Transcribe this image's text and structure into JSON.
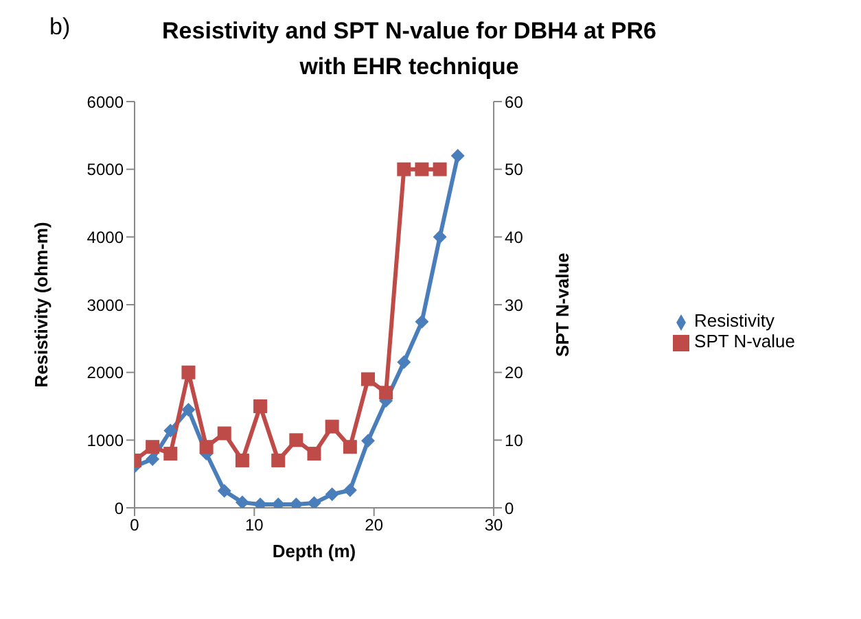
{
  "chart_data": {
    "type": "line",
    "title": "Resistivity and SPT N-value for DBH4 at PR6 with EHR technique",
    "annotations": [
      "b)"
    ],
    "xlabel": "Depth (m)",
    "ylabel": "Resistivity  (ohm-m)",
    "y2label": "SPT N-value",
    "xlim": [
      0,
      30
    ],
    "xticks": [
      0,
      10,
      20,
      30
    ],
    "ylim": [
      0,
      6000
    ],
    "yticks": [
      0,
      1000,
      2000,
      3000,
      4000,
      5000,
      6000
    ],
    "y2lim": [
      0,
      60
    ],
    "y2ticks": [
      0,
      10,
      20,
      30,
      40,
      50,
      60
    ],
    "legend": "right",
    "series": [
      {
        "name": "Resistivity",
        "color": "#4a7ebb",
        "marker": "diamond",
        "x": [
          0,
          1.5,
          3,
          4.5,
          6,
          7.5,
          9,
          10.5,
          12,
          13.5,
          15,
          16.5,
          18,
          19.5,
          21,
          22.5,
          24,
          25.5,
          27
        ],
        "values": [
          610,
          720,
          1140,
          1450,
          800,
          250,
          80,
          50,
          50,
          50,
          70,
          200,
          260,
          990,
          1580,
          2150,
          2750,
          4000,
          5200
        ]
      },
      {
        "name": "SPT N-value",
        "color": "#be4b48",
        "marker": "square",
        "axis": "y2",
        "x": [
          0,
          1.5,
          3,
          4.5,
          6,
          7.5,
          9,
          10.5,
          12,
          13.5,
          15,
          16.5,
          18,
          19.5,
          21,
          22.5,
          24,
          25.5
        ],
        "values": [
          7,
          9,
          8,
          20,
          9,
          11,
          7,
          15,
          7,
          10,
          8,
          12,
          9,
          19,
          17,
          50,
          50,
          50
        ]
      }
    ]
  }
}
